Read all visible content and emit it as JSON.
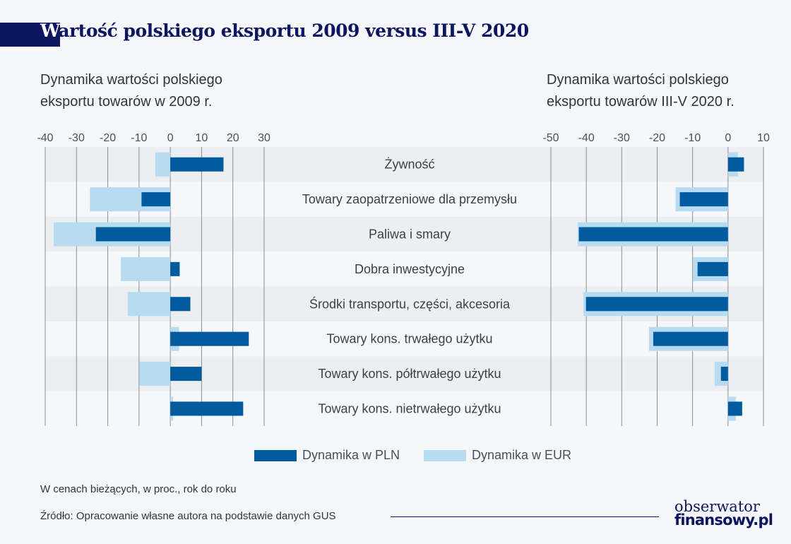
{
  "title": {
    "first_letter": "W",
    "rest": "artość polskiego eksportu 2009 versus III-V 2020"
  },
  "colors": {
    "pln": "#005a9e",
    "eur": "#b7dcf2",
    "title": "#0b1560",
    "stripe": "#eceef2"
  },
  "chart_data": [
    {
      "type": "bar",
      "orientation": "horizontal",
      "title": "Dynamika wartości polskiego eksportu towarów w 2009 r.",
      "xlim": [
        -40,
        30
      ],
      "xticks": [
        "-40",
        "-30",
        "-20",
        "-10",
        "0",
        "10",
        "20",
        "30"
      ],
      "grid": true,
      "categories": [
        "Żywność",
        "Towary zaopatrzeniowe dla przemysłu",
        "Paliwa i smary",
        "Dobra inwestycyjne",
        "Środki transportu, części, akcesoria",
        "Towary kons. trwałego użytku",
        "Towary kons. półtrwałego użytku",
        "Towary kons. nietrwałego użytku"
      ],
      "series": [
        {
          "name": "Dynamika w PLN",
          "values": [
            17.0,
            -9.2,
            -23.8,
            3.0,
            6.4,
            25.1,
            10.0,
            23.3
          ]
        },
        {
          "name": "Dynamika w EUR",
          "values": [
            -4.8,
            -25.7,
            -37.3,
            -15.8,
            -13.6,
            2.8,
            -9.9,
            0.9
          ]
        }
      ]
    },
    {
      "type": "bar",
      "orientation": "horizontal",
      "title": "Dynamika wartości polskiego eksportu towarów III-V 2020 r.",
      "xlim": [
        -50,
        10
      ],
      "xticks": [
        "-50",
        "-40",
        "-30",
        "-20",
        "-10",
        "0",
        "10"
      ],
      "grid": true,
      "categories": [
        "Żywność",
        "Towary zaopatrzeniowe dla przemysłu",
        "Paliwa i smary",
        "Dobra inwestycyjne",
        "Środki transportu, części, akcesoria",
        "Towary kons. trwałego użytku",
        "Towary kons. półtrwałego użytku",
        "Towary kons. nietrwałego użytku"
      ],
      "series": [
        {
          "name": "Dynamika w PLN",
          "values": [
            4.5,
            -13.6,
            -42.1,
            -8.6,
            -40.1,
            -21.1,
            -2.0,
            4.0
          ]
        },
        {
          "name": "Dynamika w EUR",
          "values": [
            2.8,
            -14.8,
            -42.4,
            -9.9,
            -40.8,
            -22.3,
            -3.8,
            2.2
          ]
        }
      ]
    }
  ],
  "subtitles": {
    "left_line1": "Dynamika wartości polskiego",
    "left_line2": "eksportu towarów w 2009 r.",
    "right_line1": "Dynamika wartości polskiego",
    "right_line2": "eksportu towarów III-V 2020 r."
  },
  "legend": {
    "pln": "Dynamika w PLN",
    "eur": "Dynamika w EUR",
    "placement": "bottom-center"
  },
  "notes": {
    "units": "W cenach bieżących, w proc., rok do roku",
    "source": "Źródło: Opracowanie własne autora na podstawie danych GUS"
  },
  "logo": {
    "line1": "obserwator",
    "line2": "finansowy.pl"
  }
}
